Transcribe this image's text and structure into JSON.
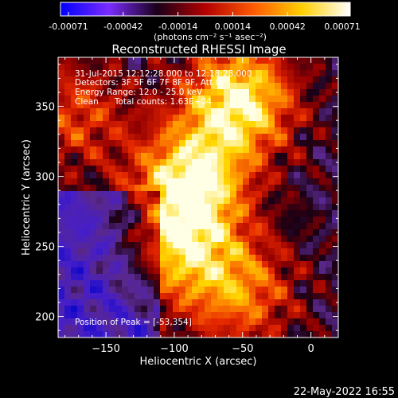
{
  "colorbar": {
    "tick_labels": [
      "-0.00071",
      "-0.00042",
      "-0.00014",
      "0.00014",
      "0.00042",
      "0.00071"
    ],
    "units_label": "(photons cm⁻² s⁻¹ asec⁻²)",
    "gradient_colors": [
      "#0000ff",
      "#7a2cff",
      "#1a001a",
      "#b30000",
      "#ff5a00",
      "#ffd000",
      "#ffffff"
    ]
  },
  "chart_data": {
    "type": "heatmap",
    "title": "Reconstructed RHESSI Image",
    "xlabel": "Heliocentric X (arcsec)",
    "ylabel": "Heliocentric Y (arcsec)",
    "xlim": [
      -185,
      20
    ],
    "ylim": [
      185,
      385
    ],
    "x_ticks": [
      -150,
      -100,
      -50,
      0
    ],
    "x_tick_labels": [
      "−150",
      "−100",
      "−50",
      "0"
    ],
    "y_ticks": [
      200,
      250,
      300,
      350
    ],
    "y_tick_labels": [
      "200",
      "250",
      "300",
      "350"
    ],
    "value_range": [
      -0.00071,
      0.00071
    ],
    "annotations": [
      "31-Jul-2015 12:12:28.000 to 12:18:28.000",
      "Detectors: 3F 5F 6F 7F 8F 9F, Att 0",
      "Energy Range: 12.0 - 25.0 keV",
      "Clean      Total counts: 1.63E+04"
    ],
    "peak_label": "Position of Peak = [-53,354]",
    "sources": [
      {
        "x": -53,
        "y": 354,
        "relative_intensity": 1.0
      },
      {
        "x": -88,
        "y": 296,
        "relative_intensity": 0.95
      },
      {
        "x": -96,
        "y": 250,
        "relative_intensity": 0.7
      },
      {
        "x": -52,
        "y": 218,
        "relative_intensity": 0.6
      },
      {
        "x": -172,
        "y": 344,
        "relative_intensity": 0.45
      }
    ]
  },
  "footer": {
    "timestamp": "22-May-2022 16:55"
  }
}
